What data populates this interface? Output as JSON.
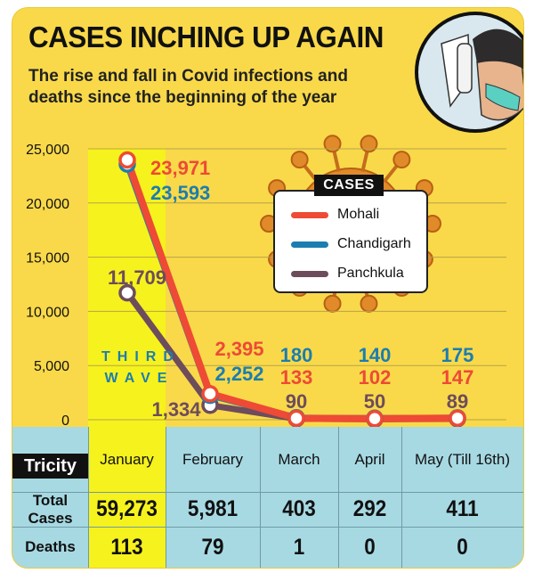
{
  "header": {
    "title": "CASES INCHING UP AGAIN",
    "subtitle": "The rise and fall in Covid infections and deaths since the beginning of the year"
  },
  "annotation": {
    "wave_line1": "THIRD",
    "wave_line2": "WAVE"
  },
  "colors": {
    "mohali": "#ee4a35",
    "chandigarh": "#1c7db0",
    "panchkula": "#6d4c5c",
    "background": "#f9d949",
    "highlight": "#f6f21d",
    "table": "#a7d9e3"
  },
  "chart_data": {
    "type": "line",
    "legend_title": "CASES",
    "categories": [
      "January",
      "February",
      "March",
      "April",
      "May (Till 16th)"
    ],
    "y_ticks": [
      "25,000",
      "20,000",
      "15,000",
      "10,000",
      "5,000",
      "0"
    ],
    "ylim": [
      0,
      25000
    ],
    "series": [
      {
        "name": "Mohali",
        "values": [
          23971,
          2395,
          133,
          102,
          147
        ],
        "labels": [
          "23,971",
          "2,395",
          "133",
          "102",
          "147"
        ]
      },
      {
        "name": "Chandigarh",
        "values": [
          23593,
          2252,
          180,
          140,
          175
        ],
        "labels": [
          "23,593",
          "2,252",
          "180",
          "140",
          "175"
        ]
      },
      {
        "name": "Panchkula",
        "values": [
          11709,
          1334,
          90,
          50,
          89
        ],
        "labels": [
          "11,709",
          "1,334",
          "90",
          "50",
          "89"
        ]
      }
    ]
  },
  "table": {
    "region": "Tricity",
    "rows": [
      {
        "label_line1": "Total",
        "label_line2": "Cases",
        "values": [
          "59,273",
          "5,981",
          "403",
          "292",
          "411"
        ]
      },
      {
        "label_line1": "Deaths",
        "label_line2": "",
        "values": [
          "113",
          "79",
          "1",
          "0",
          "0"
        ]
      }
    ]
  }
}
